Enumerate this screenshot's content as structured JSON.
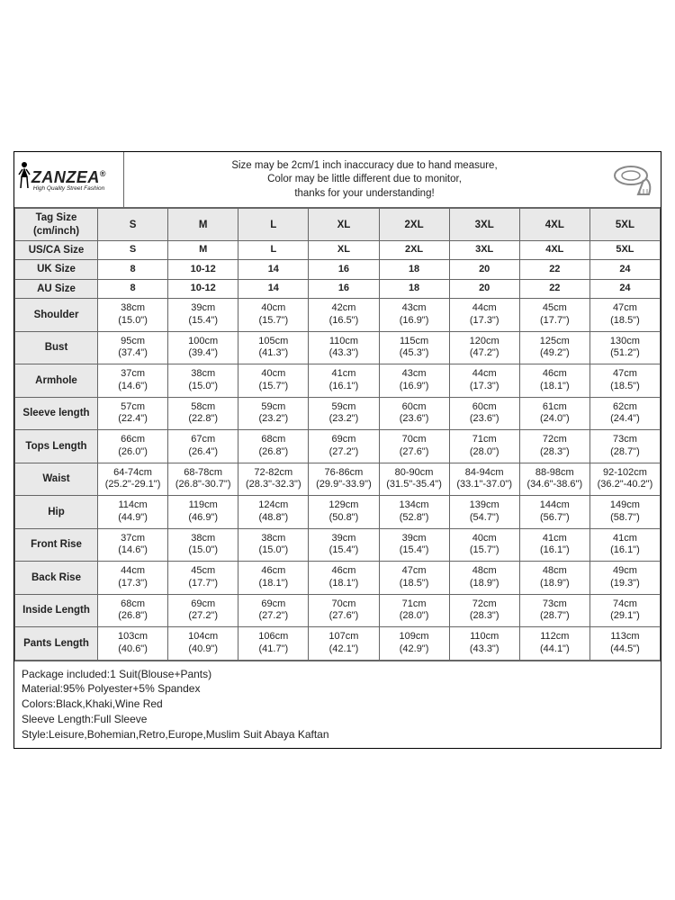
{
  "brand": {
    "name": "ZANZEA",
    "tag": "High Quality Street Fashion",
    "reg": "®"
  },
  "notice": {
    "l1": "Size may be 2cm/1 inch inaccuracy due to hand measure,",
    "l2": "Color may be little different due to monitor,",
    "l3": "thanks for your understanding!"
  },
  "columns": [
    "S",
    "M",
    "L",
    "XL",
    "2XL",
    "3XL",
    "4XL",
    "5XL"
  ],
  "header_rows": [
    {
      "label": "Tag Size\n(cm/inch)",
      "cells": [
        "S",
        "M",
        "L",
        "XL",
        "2XL",
        "3XL",
        "4XL",
        "5XL"
      ]
    },
    {
      "label": "US/CA Size",
      "cells": [
        "S",
        "M",
        "L",
        "XL",
        "2XL",
        "3XL",
        "4XL",
        "5XL"
      ]
    },
    {
      "label": "UK Size",
      "cells": [
        "8",
        "10-12",
        "14",
        "16",
        "18",
        "20",
        "22",
        "24"
      ]
    },
    {
      "label": "AU Size",
      "cells": [
        "8",
        "10-12",
        "14",
        "16",
        "18",
        "20",
        "22",
        "24"
      ]
    }
  ],
  "measure_rows": [
    {
      "label": "Shoulder",
      "cm": [
        "38cm",
        "39cm",
        "40cm",
        "42cm",
        "43cm",
        "44cm",
        "45cm",
        "47cm"
      ],
      "in": [
        "(15.0\")",
        "(15.4\")",
        "(15.7\")",
        "(16.5\")",
        "(16.9\")",
        "(17.3\")",
        "(17.7\")",
        "(18.5\")"
      ]
    },
    {
      "label": "Bust",
      "cm": [
        "95cm",
        "100cm",
        "105cm",
        "110cm",
        "115cm",
        "120cm",
        "125cm",
        "130cm"
      ],
      "in": [
        "(37.4\")",
        "(39.4\")",
        "(41.3\")",
        "(43.3\")",
        "(45.3\")",
        "(47.2\")",
        "(49.2\")",
        "(51.2\")"
      ]
    },
    {
      "label": "Armhole",
      "cm": [
        "37cm",
        "38cm",
        "40cm",
        "41cm",
        "43cm",
        "44cm",
        "46cm",
        "47cm"
      ],
      "in": [
        "(14.6\")",
        "(15.0\")",
        "(15.7\")",
        "(16.1\")",
        "(16.9\")",
        "(17.3\")",
        "(18.1\")",
        "(18.5\")"
      ]
    },
    {
      "label": "Sleeve length",
      "cm": [
        "57cm",
        "58cm",
        "59cm",
        "59cm",
        "60cm",
        "60cm",
        "61cm",
        "62cm"
      ],
      "in": [
        "(22.4\")",
        "(22.8\")",
        "(23.2\")",
        "(23.2\")",
        "(23.6\")",
        "(23.6\")",
        "(24.0\")",
        "(24.4\")"
      ]
    },
    {
      "label": "Tops Length",
      "cm": [
        "66cm",
        "67cm",
        "68cm",
        "69cm",
        "70cm",
        "71cm",
        "72cm",
        "73cm"
      ],
      "in": [
        "(26.0\")",
        "(26.4\")",
        "(26.8\")",
        "(27.2\")",
        "(27.6\")",
        "(28.0\")",
        "(28.3\")",
        "(28.7\")"
      ]
    },
    {
      "label": "Waist",
      "cm": [
        "64-74cm",
        "68-78cm",
        "72-82cm",
        "76-86cm",
        "80-90cm",
        "84-94cm",
        "88-98cm",
        "92-102cm"
      ],
      "in": [
        "(25.2\"-29.1\")",
        "(26.8\"-30.7\")",
        "(28.3\"-32.3\")",
        "(29.9\"-33.9\")",
        "(31.5\"-35.4\")",
        "(33.1\"-37.0\")",
        "(34.6\"-38.6\")",
        "(36.2\"-40.2\")"
      ]
    },
    {
      "label": "Hip",
      "cm": [
        "114cm",
        "119cm",
        "124cm",
        "129cm",
        "134cm",
        "139cm",
        "144cm",
        "149cm"
      ],
      "in": [
        "(44.9\")",
        "(46.9\")",
        "(48.8\")",
        "(50.8\")",
        "(52.8\")",
        "(54.7\")",
        "(56.7\")",
        "(58.7\")"
      ]
    },
    {
      "label": "Front Rise",
      "cm": [
        "37cm",
        "38cm",
        "38cm",
        "39cm",
        "39cm",
        "40cm",
        "41cm",
        "41cm"
      ],
      "in": [
        "(14.6\")",
        "(15.0\")",
        "(15.0\")",
        "(15.4\")",
        "(15.4\")",
        "(15.7\")",
        "(16.1\")",
        "(16.1\")"
      ]
    },
    {
      "label": "Back Rise",
      "cm": [
        "44cm",
        "45cm",
        "46cm",
        "46cm",
        "47cm",
        "48cm",
        "48cm",
        "49cm"
      ],
      "in": [
        "(17.3\")",
        "(17.7\")",
        "(18.1\")",
        "(18.1\")",
        "(18.5\")",
        "(18.9\")",
        "(18.9\")",
        "(19.3\")"
      ]
    },
    {
      "label": "Inside Length",
      "cm": [
        "68cm",
        "69cm",
        "69cm",
        "70cm",
        "71cm",
        "72cm",
        "73cm",
        "74cm"
      ],
      "in": [
        "(26.8\")",
        "(27.2\")",
        "(27.2\")",
        "(27.6\")",
        "(28.0\")",
        "(28.3\")",
        "(28.7\")",
        "(29.1\")"
      ]
    },
    {
      "label": "Pants Length",
      "cm": [
        "103cm",
        "104cm",
        "106cm",
        "107cm",
        "109cm",
        "110cm",
        "112cm",
        "113cm"
      ],
      "in": [
        "(40.6\")",
        "(40.9\")",
        "(41.7\")",
        "(42.1\")",
        "(42.9\")",
        "(43.3\")",
        "(44.1\")",
        "(44.5\")"
      ]
    }
  ],
  "footer": [
    "Package included:1 Suit(Blouse+Pants)",
    "Material:95% Polyester+5% Spandex",
    "Colors:Black,Khaki,Wine Red",
    "Sleeve Length:Full Sleeve",
    "Style:Leisure,Bohemian,Retro,Europe,Muslim Suit Abaya Kaftan"
  ],
  "style": {
    "border_color": "#666666",
    "header_bg": "#e9e9e9",
    "text_color": "#222222",
    "font_size_cell": 11,
    "font_size_header": 11.5
  }
}
